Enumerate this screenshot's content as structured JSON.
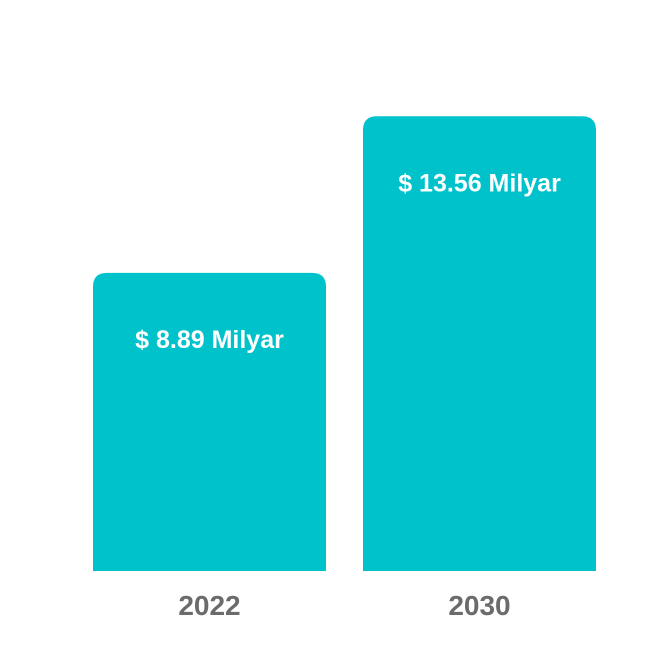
{
  "chart_data": {
    "type": "bar",
    "title": "",
    "xlabel": "",
    "ylabel": "",
    "categories": [
      "2022",
      "2030"
    ],
    "values": [
      8.89,
      13.56
    ],
    "data_labels": [
      "$ 8.89 Milyar",
      "$ 13.56 Milyar"
    ],
    "ylim": [
      0,
      16.46
    ],
    "grid": false,
    "legend": "none",
    "colors": {
      "bar": "#00C2CB",
      "bar_label": "#ffffff",
      "tick_label": "#6b6b6b",
      "background": "#ffffff"
    }
  }
}
